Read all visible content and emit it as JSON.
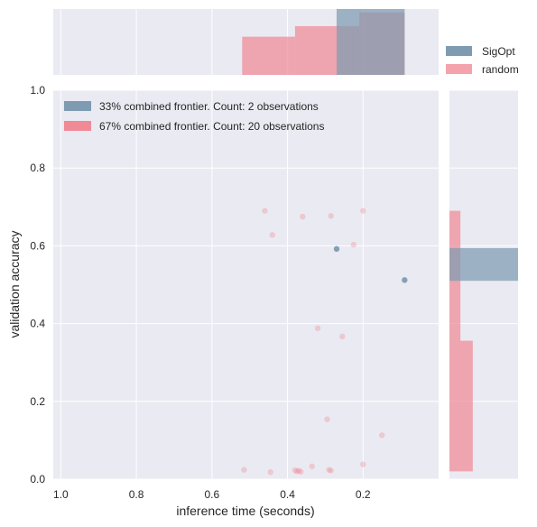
{
  "chart_data": {
    "type": "scatter",
    "xlabel": "inference time (seconds)",
    "ylabel": "validation accuracy",
    "xlim": [
      1.02,
      0.0
    ],
    "ylim": [
      0.0,
      1.0
    ],
    "x_ticks": [
      "1.0",
      "0.8",
      "0.6",
      "0.4",
      "0.2"
    ],
    "y_ticks": [
      "0.0",
      "0.2",
      "0.4",
      "0.6",
      "0.8",
      "1.0"
    ],
    "grid": true,
    "legend_scatter": [
      "33% combined frontier. Count: 2 observations",
      "67% combined frontier. Count: 20 observations"
    ],
    "legend_hist": [
      "SigOpt",
      "random"
    ],
    "colors": {
      "sigopt": "#7f9bb2",
      "random": "#f08a96",
      "background": "#eaeaf2",
      "grid": "#ffffff"
    },
    "series": [
      {
        "name": "SigOpt",
        "points": [
          [
            0.27,
            0.592
          ],
          [
            0.09,
            0.512
          ]
        ]
      },
      {
        "name": "random",
        "points": [
          [
            0.46,
            0.69
          ],
          [
            0.36,
            0.675
          ],
          [
            0.285,
            0.677
          ],
          [
            0.2,
            0.69
          ],
          [
            0.44,
            0.628
          ],
          [
            0.225,
            0.603
          ],
          [
            0.32,
            0.388
          ],
          [
            0.255,
            0.367
          ],
          [
            0.295,
            0.154
          ],
          [
            0.15,
            0.113
          ],
          [
            0.515,
            0.024
          ],
          [
            0.445,
            0.018
          ],
          [
            0.38,
            0.023
          ],
          [
            0.37,
            0.022
          ],
          [
            0.365,
            0.019
          ],
          [
            0.335,
            0.033
          ],
          [
            0.29,
            0.024
          ],
          [
            0.285,
            0.022
          ],
          [
            0.2,
            0.038
          ],
          [
            0.375,
            0.02
          ]
        ]
      }
    ],
    "top_histogram": [
      {
        "series": "random",
        "bins": [
          [
            0.52,
            0.38,
            0.58
          ],
          [
            0.38,
            0.21,
            0.74
          ],
          [
            0.21,
            0.09,
            0.95
          ]
        ]
      },
      {
        "series": "SigOpt",
        "bins": [
          [
            0.27,
            0.09,
            1.0
          ]
        ]
      }
    ],
    "right_histogram": [
      {
        "series": "random",
        "bins": [
          [
            0.02,
            0.356,
            0.34
          ],
          [
            0.356,
            0.69,
            0.16
          ]
        ]
      },
      {
        "series": "SigOpt",
        "bins": [
          [
            0.51,
            0.594,
            1.0
          ]
        ]
      }
    ]
  }
}
